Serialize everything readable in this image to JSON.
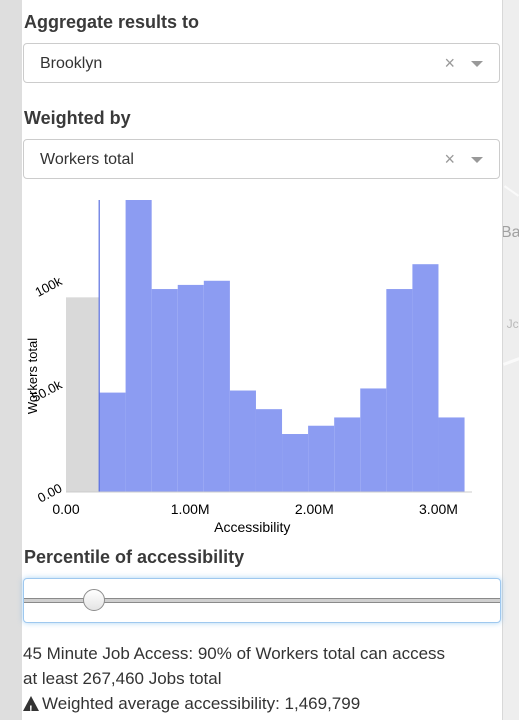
{
  "aggregate": {
    "heading": "Aggregate results to",
    "selected": "Brooklyn",
    "clear": "×"
  },
  "weight": {
    "heading": "Weighted by",
    "selected": "Workers total",
    "clear": "×"
  },
  "chart_data": {
    "type": "bar",
    "xlabel": "Accessibility",
    "ylabel": "Workers total",
    "x_ticks": [
      "0.00",
      "1.00M",
      "2.00M",
      "3.00M"
    ],
    "x_tick_values": [
      0,
      1000000,
      2000000,
      3000000
    ],
    "y_ticks": [
      "0.00",
      "50.0k",
      "100k"
    ],
    "y_tick_values": [
      0,
      50000,
      100000
    ],
    "xlim": [
      0,
      3270000
    ],
    "ylim": [
      0,
      141000
    ],
    "bar_edges": [
      267460,
      480000,
      690000,
      900000,
      1110000,
      1320000,
      1530000,
      1740000,
      1950000,
      2160000,
      2370000,
      2580000,
      2790000,
      3000000,
      3210000
    ],
    "bar_values": [
      48000,
      141000,
      98000,
      100000,
      102000,
      49000,
      40000,
      28000,
      32000,
      36000,
      50000,
      98000,
      110000,
      36000
    ],
    "excluded_bar": {
      "x0": 0,
      "x1": 267460,
      "value": 94000
    },
    "marker_value": 267460,
    "colors": {
      "bars": "#8c9cf2",
      "excluded": "#d9d9d9",
      "marker": "#5a6fe0"
    }
  },
  "percentile": {
    "heading": "Percentile of accessibility",
    "value_fraction": 0.13
  },
  "summary": {
    "line1": "45 Minute Job Access: 90% of Workers total can access",
    "line2": "at least 267,460 Jobs total",
    "line3": "Weighted average accessibility: 1,469,799"
  },
  "map": {
    "label_ba": "Ba",
    "label_j": ": Jc"
  }
}
